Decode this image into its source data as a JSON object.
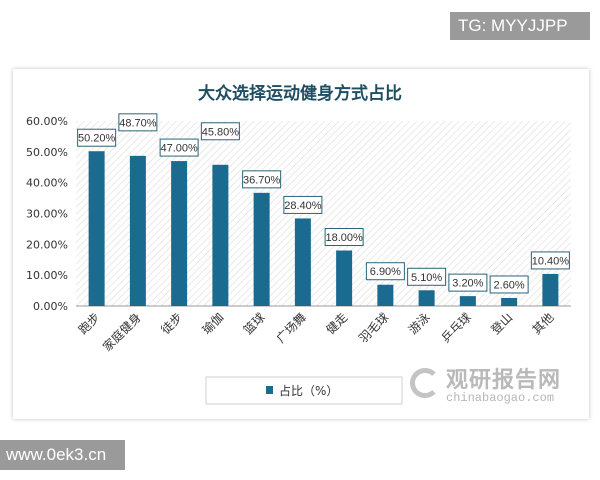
{
  "badges": {
    "tg": "TG: MYYJJPP",
    "site": "www.0ek3.cn"
  },
  "watermark": {
    "cn": "观研报告网",
    "en": "chinabaogao.com"
  },
  "chart_data": {
    "type": "bar",
    "title": "大众选择运动健身方式占比",
    "categories": [
      "跑步",
      "家庭健身",
      "徒步",
      "瑜伽",
      "篮球",
      "广场舞",
      "健走",
      "羽毛球",
      "游泳",
      "乒乓球",
      "登山",
      "其他"
    ],
    "series": [
      {
        "name": "占比（%）",
        "values": [
          50.2,
          48.7,
          47.0,
          45.8,
          36.7,
          28.4,
          18.0,
          6.9,
          5.1,
          3.2,
          2.6,
          10.4
        ]
      }
    ],
    "data_labels": [
      "50.20%",
      "48.70%",
      "47.00%",
      "45.80%",
      "36.70%",
      "28.40%",
      "18.00%",
      "6.90%",
      "5.10%",
      "3.20%",
      "2.60%",
      "10.40%"
    ],
    "yticks": [
      "0.00%",
      "10.00%",
      "20.00%",
      "30.00%",
      "40.00%",
      "50.00%",
      "60.00%"
    ],
    "ylim": [
      0,
      60
    ],
    "xlabel": "",
    "ylabel": "",
    "grid": false,
    "legend": "bottom",
    "colors": {
      "bar": "#1b6a90",
      "title": "#1f4e63",
      "background_hatch": "#d9d9d9"
    }
  }
}
